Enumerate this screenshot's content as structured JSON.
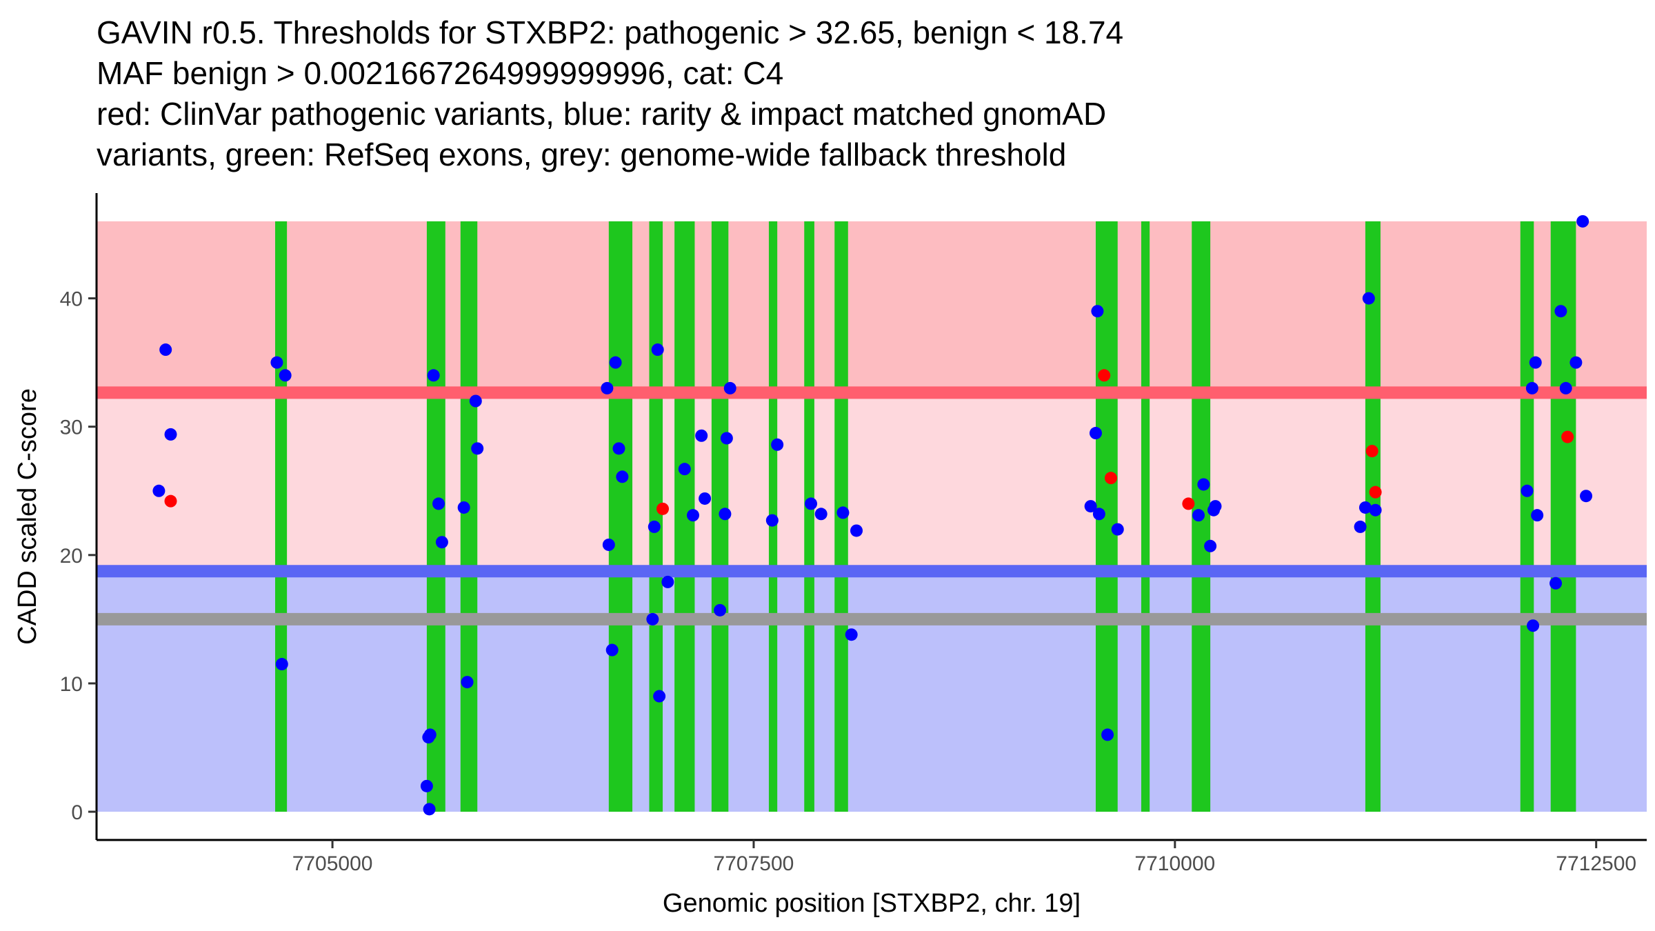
{
  "title_lines": [
    "GAVIN r0.5. Thresholds for STXBP2: pathogenic > 32.65, benign < 18.74",
    "MAF benign > 0.0021667264999999996, cat: C4",
    "red: ClinVar pathogenic variants, blue: rarity & impact matched gnomAD",
    "variants, green: RefSeq exons, grey: genome-wide fallback threshold"
  ],
  "chart_data": {
    "type": "scatter",
    "title": "GAVIN r0.5. Thresholds for STXBP2: pathogenic > 32.65, benign < 18.74",
    "xlabel": "Genomic position [STXBP2, chr. 19]",
    "ylabel": "CADD scaled C-score",
    "xlim": [
      7703600,
      7712800
    ],
    "ylim": [
      -2.2,
      48.2
    ],
    "x_ticks": [
      7705000,
      7707500,
      7710000,
      7712500
    ],
    "x_tick_labels": [
      "7705000",
      "7707500",
      "7710000",
      "7712500"
    ],
    "y_ticks": [
      0,
      10,
      20,
      30,
      40
    ],
    "y_tick_labels": [
      "0",
      "10",
      "20",
      "30",
      "40"
    ],
    "thresholds": {
      "pathogenic": 32.65,
      "benign": 18.74,
      "fallback": 15.0,
      "max": 46.0,
      "min": 0
    },
    "colors": {
      "pathogenic_band": "#fdbcc1",
      "pathogenic_line": "#ff5e6e",
      "vus_band": "#fed8dd",
      "benign_band": "#bcc0fb",
      "benign_line": "#5a66f4",
      "fallback_line": "#999999",
      "exon": "#1ec71e",
      "gnomad": "#0000ff",
      "clinvar": "#ff0000"
    },
    "exons": [
      [
        7704660,
        7704730
      ],
      [
        7705560,
        7705670
      ],
      [
        7705760,
        7705860
      ],
      [
        7706640,
        7706780
      ],
      [
        7706880,
        7706960
      ],
      [
        7707030,
        7707150
      ],
      [
        7707250,
        7707350
      ],
      [
        7707590,
        7707640
      ],
      [
        7707800,
        7707860
      ],
      [
        7707980,
        7708060
      ],
      [
        7709530,
        7709660
      ],
      [
        7709800,
        7709850
      ],
      [
        7710100,
        7710210
      ],
      [
        7711130,
        7711220
      ],
      [
        7712050,
        7712130
      ],
      [
        7712230,
        7712380
      ]
    ],
    "series": [
      {
        "name": "rarity & impact matched gnomAD variants",
        "color": "blue",
        "points": [
          [
            7703970,
            25.0
          ],
          [
            7704010,
            36.0
          ],
          [
            7704040,
            29.4
          ],
          [
            7704670,
            35.0
          ],
          [
            7704700,
            11.5
          ],
          [
            7704720,
            34.0
          ],
          [
            7705560,
            2.0
          ],
          [
            7705570,
            5.8
          ],
          [
            7705575,
            0.2
          ],
          [
            7705580,
            6.0
          ],
          [
            7705600,
            34.0
          ],
          [
            7705630,
            24.0
          ],
          [
            7705650,
            21.0
          ],
          [
            7705780,
            23.7
          ],
          [
            7705800,
            10.1
          ],
          [
            7705850,
            32.0
          ],
          [
            7705860,
            28.3
          ],
          [
            7706630,
            33.0
          ],
          [
            7706640,
            20.8
          ],
          [
            7706660,
            12.6
          ],
          [
            7706680,
            35.0
          ],
          [
            7706700,
            28.3
          ],
          [
            7706720,
            26.1
          ],
          [
            7706900,
            15.0
          ],
          [
            7706910,
            22.2
          ],
          [
            7706930,
            36.0
          ],
          [
            7706940,
            9.0
          ],
          [
            7706990,
            17.9
          ],
          [
            7707090,
            26.7
          ],
          [
            7707140,
            23.1
          ],
          [
            7707190,
            29.3
          ],
          [
            7707210,
            24.4
          ],
          [
            7707300,
            15.7
          ],
          [
            7707330,
            23.2
          ],
          [
            7707340,
            29.1
          ],
          [
            7707360,
            33.0
          ],
          [
            7707610,
            22.7
          ],
          [
            7707640,
            28.6
          ],
          [
            7707840,
            24.0
          ],
          [
            7707900,
            23.2
          ],
          [
            7708030,
            23.3
          ],
          [
            7708080,
            13.8
          ],
          [
            7708110,
            21.9
          ],
          [
            7709500,
            23.8
          ],
          [
            7709530,
            29.5
          ],
          [
            7709540,
            39.0
          ],
          [
            7709550,
            23.2
          ],
          [
            7709600,
            6.0
          ],
          [
            7709660,
            22.0
          ],
          [
            7710140,
            23.1
          ],
          [
            7710170,
            25.5
          ],
          [
            7710210,
            20.7
          ],
          [
            7710230,
            23.5
          ],
          [
            7710240,
            23.8
          ],
          [
            7711100,
            22.2
          ],
          [
            7711130,
            23.7
          ],
          [
            7711150,
            40.0
          ],
          [
            7711190,
            23.5
          ],
          [
            7712090,
            25.0
          ],
          [
            7712120,
            33.0
          ],
          [
            7712125,
            14.5
          ],
          [
            7712140,
            35.0
          ],
          [
            7712150,
            23.1
          ],
          [
            7712260,
            17.8
          ],
          [
            7712290,
            39.0
          ],
          [
            7712320,
            33.0
          ],
          [
            7712380,
            35.0
          ],
          [
            7712420,
            46.0
          ],
          [
            7712440,
            24.6
          ]
        ]
      },
      {
        "name": "ClinVar pathogenic variants",
        "color": "red",
        "points": [
          [
            7704040,
            24.2
          ],
          [
            7706960,
            23.6
          ],
          [
            7709580,
            34.0
          ],
          [
            7709620,
            26.0
          ],
          [
            7710080,
            24.0
          ],
          [
            7711170,
            28.1
          ],
          [
            7711190,
            24.9
          ],
          [
            7712330,
            29.2
          ]
        ]
      }
    ]
  }
}
